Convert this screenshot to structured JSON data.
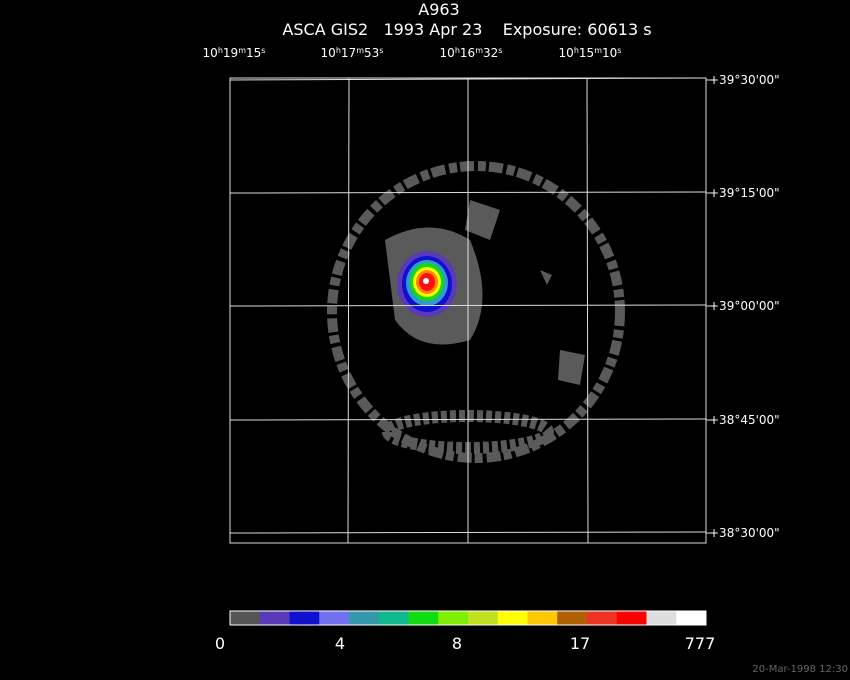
{
  "header": {
    "title": "A963",
    "subtitle": "ASCA GIS2   1993 Apr 23    Exposure: 60613 s"
  },
  "ra_labels": [
    [
      "10",
      "h",
      "19",
      "m",
      "15",
      "s"
    ],
    [
      "10",
      "h",
      "17",
      "m",
      "53",
      "s"
    ],
    [
      "10",
      "h",
      "16",
      "m",
      "32",
      "s"
    ],
    [
      "10",
      "h",
      "15",
      "m",
      "10",
      "s"
    ]
  ],
  "dec_labels": [
    "+39°30'00\"",
    "+39°15'00\"",
    "+39°00'00\"",
    "+38°45'00\"",
    "+38°30'00\""
  ],
  "colorbar_labels": [
    "0",
    "4",
    "8",
    "17",
    "777"
  ],
  "timestamp": "20-Mar-1998 12:30"
}
